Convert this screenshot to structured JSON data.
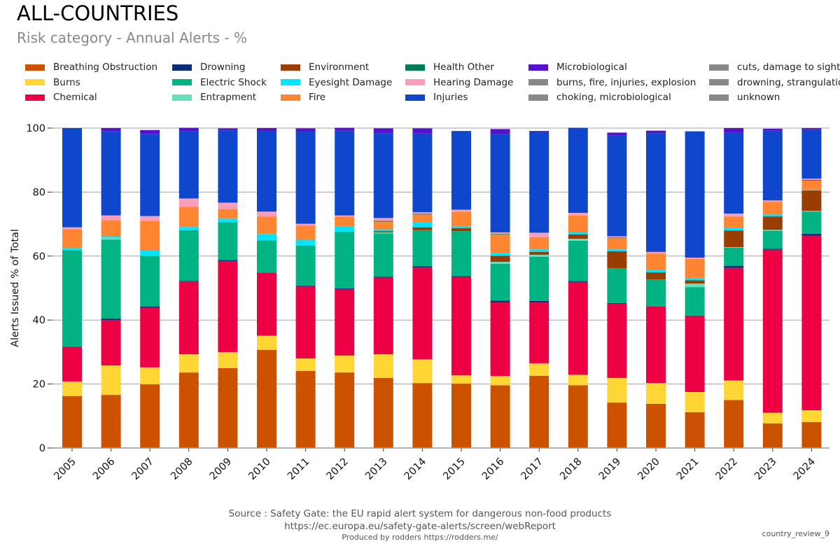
{
  "header": {
    "title": "ALL-COUNTRIES",
    "subtitle": "Risk category - Annual Alerts - %"
  },
  "footer": {
    "source": "Source : Safety Gate: the EU rapid alert system for dangerous non-food products",
    "url": "https://ec.europa.eu/safety-gate-alerts/screen/webReport",
    "produced_by": "Produced by rodders https://rodders.me/",
    "report_id": "country_review_9"
  },
  "legend": [
    {
      "name": "Breathing Obstruction",
      "color": "#cc5200"
    },
    {
      "name": "Burns",
      "color": "#ffd633"
    },
    {
      "name": "Chemical",
      "color": "#ee0044"
    },
    {
      "name": "Drowning",
      "color": "#0a2a7a"
    },
    {
      "name": "Electric Shock",
      "color": "#00b383"
    },
    {
      "name": "Entrapment",
      "color": "#66dfbd"
    },
    {
      "name": "Environment",
      "color": "#993d00"
    },
    {
      "name": "Eyesight Damage",
      "color": "#00e5ff"
    },
    {
      "name": "Fire",
      "color": "#ff8533"
    },
    {
      "name": "Health Other",
      "color": "#007a57"
    },
    {
      "name": "Hearing Damage",
      "color": "#f79eb8"
    },
    {
      "name": "Injuries",
      "color": "#0f47cc"
    },
    {
      "name": "Microbiological",
      "color": "#5511cc"
    },
    {
      "name": "burns, fire, injuries, explosion",
      "color": "#888888"
    },
    {
      "name": "choking, microbiological",
      "color": "#888888"
    },
    {
      "name": "cuts, damage to sight, choking",
      "color": "#888888"
    },
    {
      "name": "drowning, strangulation",
      "color": "#888888"
    },
    {
      "name": "unknown",
      "color": "#888888"
    }
  ],
  "chart_data": {
    "type": "bar",
    "stacked": true,
    "title": "ALL-COUNTRIES",
    "subtitle": "Risk category - Annual Alerts - %",
    "xlabel": "",
    "ylabel": "Alerts Issued % of Total",
    "ylim": [
      0,
      100
    ],
    "yticks": [
      0,
      20,
      40,
      60,
      80,
      100
    ],
    "grid": true,
    "legend_position": "top",
    "categories": [
      "2005",
      "2006",
      "2007",
      "2008",
      "2009",
      "2010",
      "2011",
      "2012",
      "2013",
      "2014",
      "2015",
      "2016",
      "2017",
      "2018",
      "2019",
      "2020",
      "2021",
      "2022",
      "2023",
      "2024"
    ],
    "series": [
      {
        "name": "Breathing Obstruction",
        "color": "#cc5200",
        "values": [
          16.2,
          16.6,
          19.9,
          23.6,
          25.0,
          30.7,
          24.1,
          23.6,
          21.9,
          20.3,
          20.1,
          19.6,
          22.6,
          19.6,
          14.2,
          13.8,
          11.2,
          15.0,
          7.7,
          8.1
        ]
      },
      {
        "name": "Burns",
        "color": "#ffd633",
        "values": [
          4.6,
          9.2,
          5.3,
          5.7,
          5.0,
          4.4,
          3.9,
          5.3,
          7.4,
          7.4,
          2.6,
          2.9,
          3.9,
          3.3,
          7.7,
          6.5,
          6.3,
          6.1,
          3.3,
          3.7
        ]
      },
      {
        "name": "Chemical",
        "color": "#ee0044",
        "values": [
          10.9,
          14.2,
          18.6,
          22.7,
          28.4,
          19.7,
          22.6,
          20.8,
          24.0,
          28.7,
          30.8,
          23.0,
          19.0,
          29.0,
          23.2,
          23.9,
          23.9,
          35.2,
          51.0,
          54.6
        ]
      },
      {
        "name": "Drowning",
        "color": "#0a2a7a",
        "values": [
          0.0,
          0.5,
          0.4,
          0.2,
          0.4,
          0.0,
          0.2,
          0.2,
          0.2,
          0.4,
          0.2,
          0.6,
          0.5,
          0.3,
          0.2,
          0.0,
          0.0,
          0.6,
          0.3,
          0.6
        ]
      },
      {
        "name": "Electric Shock",
        "color": "#00b383",
        "values": [
          30.1,
          24.6,
          15.8,
          15.9,
          11.8,
          10.1,
          12.5,
          17.7,
          13.6,
          11.3,
          14.1,
          11.5,
          13.8,
          12.6,
          10.9,
          8.5,
          8.9,
          5.7,
          5.6,
          6.9
        ]
      },
      {
        "name": "Entrapment",
        "color": "#66dfbd",
        "values": [
          0.0,
          0.6,
          0.0,
          0.0,
          0.0,
          0.0,
          0.0,
          0.0,
          0.3,
          0.0,
          0.0,
          0.6,
          0.6,
          0.6,
          0.0,
          0.0,
          1.1,
          0.2,
          0.3,
          0.2
        ]
      },
      {
        "name": "Environment",
        "color": "#993d00",
        "values": [
          0.0,
          0.0,
          0.0,
          0.0,
          0.0,
          0.0,
          0.0,
          0.0,
          0.4,
          0.9,
          0.9,
          1.9,
          0.9,
          1.4,
          5.3,
          2.2,
          1.0,
          5.2,
          4.2,
          6.4
        ]
      },
      {
        "name": "Eyesight Damage",
        "color": "#00e5ff",
        "values": [
          0.7,
          0.6,
          1.7,
          1.0,
          1.1,
          2.0,
          1.8,
          1.6,
          0.5,
          1.6,
          0.7,
          0.9,
          0.8,
          0.6,
          0.6,
          0.8,
          0.8,
          0.8,
          0.6,
          0.3
        ]
      },
      {
        "name": "Fire",
        "color": "#ff8533",
        "values": [
          5.9,
          4.9,
          9.2,
          6.3,
          3.0,
          5.5,
          4.4,
          3.1,
          2.5,
          2.4,
          4.5,
          5.8,
          3.8,
          5.3,
          3.5,
          5.1,
          5.9,
          3.6,
          4.0,
          2.8
        ]
      },
      {
        "name": "Health Other",
        "color": "#007a57",
        "values": [
          0.0,
          0.0,
          0.0,
          0.0,
          0.0,
          0.0,
          0.0,
          0.0,
          0.2,
          0.2,
          0.0,
          0.2,
          0.0,
          0.0,
          0.2,
          0.0,
          0.0,
          0.0,
          0.0,
          0.2
        ]
      },
      {
        "name": "Hearing Damage",
        "color": "#f79eb8",
        "values": [
          0.6,
          1.5,
          1.6,
          2.6,
          2.0,
          1.5,
          0.6,
          0.4,
          0.9,
          0.5,
          0.6,
          0.4,
          1.4,
          0.8,
          0.4,
          0.5,
          0.4,
          0.9,
          0.4,
          0.4
        ]
      },
      {
        "name": "Injuries",
        "color": "#0f47cc",
        "values": [
          30.9,
          26.4,
          25.7,
          21.1,
          22.6,
          25.1,
          28.8,
          26.5,
          26.5,
          24.6,
          24.6,
          30.7,
          31.5,
          26.6,
          31.6,
          37.1,
          39.5,
          25.3,
          21.8,
          15.4
        ]
      },
      {
        "name": "Microbiological",
        "color": "#5511cc",
        "values": [
          0.1,
          0.9,
          1.2,
          1.0,
          0.6,
          1.0,
          1.0,
          0.9,
          1.5,
          1.6,
          0.0,
          1.6,
          0.3,
          0.0,
          0.8,
          0.8,
          0.0,
          1.4,
          0.6,
          0.4
        ]
      }
    ]
  }
}
